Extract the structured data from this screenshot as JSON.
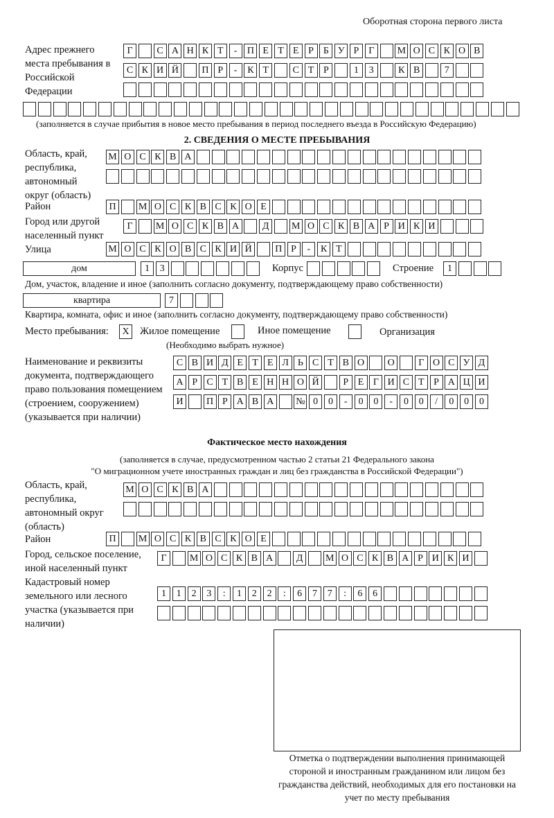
{
  "header": {
    "page_side": "Оборотная сторона первого листа"
  },
  "previous_address": {
    "label": "Адрес прежнего места пребывания в Российской Федерации",
    "rows": [
      "Г САНКТ-ПЕТЕРБУРГ МОСКОВ",
      "СКИЙ ПР-КТ СТР 13 КВ 7",
      "",
      ""
    ],
    "note": "(заполняется в случае прибытия в новое место пребывания в период последнего въезда в Российскую Федерацию)"
  },
  "section2": {
    "title": "2. СВЕДЕНИЯ О МЕСТЕ ПРЕБЫВАНИЯ",
    "region_label": "Область, край, республика, автономный округ (область)",
    "region_rows": [
      "МОСКВА",
      ""
    ],
    "district_label": "Район",
    "district": "П МОСКВСКОЕ",
    "city_label": "Город или другой населенный пункт",
    "city": "Г МОСКВА Д МОСКВАРИКИ",
    "street_label": "Улица",
    "street": "МОСКОВСКИЙ ПР-КТ",
    "house_type": "дом",
    "house_number": "13",
    "building_label": "Корпус",
    "building": "",
    "structure_label": "Строение",
    "structure": "1",
    "house_caption": "Дом, участок, владение и иное (заполнить согласно документу, подтверждающему право собственности)",
    "apartment_type": "квартира",
    "apartment_number": "7",
    "apartment_caption": "Квартира, комната, офис и иное (заполнить согласно документу, подтверждающему право собственности)",
    "stay_place_label": "Место пребывания:",
    "stay_options": [
      {
        "label": "Жилое помещение",
        "mark": "X"
      },
      {
        "label": "Иное помещение",
        "mark": ""
      },
      {
        "label": "Организация",
        "mark": ""
      }
    ],
    "stay_hint": "(Необходимо выбрать нужное)",
    "document_label": "Наименование и реквизиты документа, подтверждающего право пользования помещением (строением, сооружением) (указывается при наличии)",
    "document_rows": [
      "СВИДЕТЕЛЬСТВО О ГОСУД",
      "АРСТВЕННОЙ РЕГИСТРАЦИ",
      "И ПРАВА №00-00-00/000"
    ]
  },
  "actual_location": {
    "title": "Фактическое место нахождения",
    "note_line1": "(заполняется в случае, предусмотренном частью 2 статьи 21 Федерального закона",
    "note_line2": "\"О миграционном учете иностранных граждан и лиц без гражданства в Российской Федерации\")",
    "region_label": "Область, край, республика, автономный округ (область)",
    "region_rows": [
      "МОСКВА",
      ""
    ],
    "district_label": "Район",
    "district": "П МОСКВСКОЕ",
    "city_label": "Город, сельское поселение, иной населенный пункт",
    "city": "Г МОСКВА Д МОСКВАРИКИ",
    "cadastral_label": "Кадастровый номер земельного или лесного участка (указывается при наличии)",
    "cadastral_rows": [
      "1123:122:677:66",
      ""
    ]
  },
  "stamp_caption": "Отметка о подтверждении выполнения принимающей стороной и иностранным гражданином или лицом без гражданства действий, необходимых для его постановки на учет по месту пребывания"
}
